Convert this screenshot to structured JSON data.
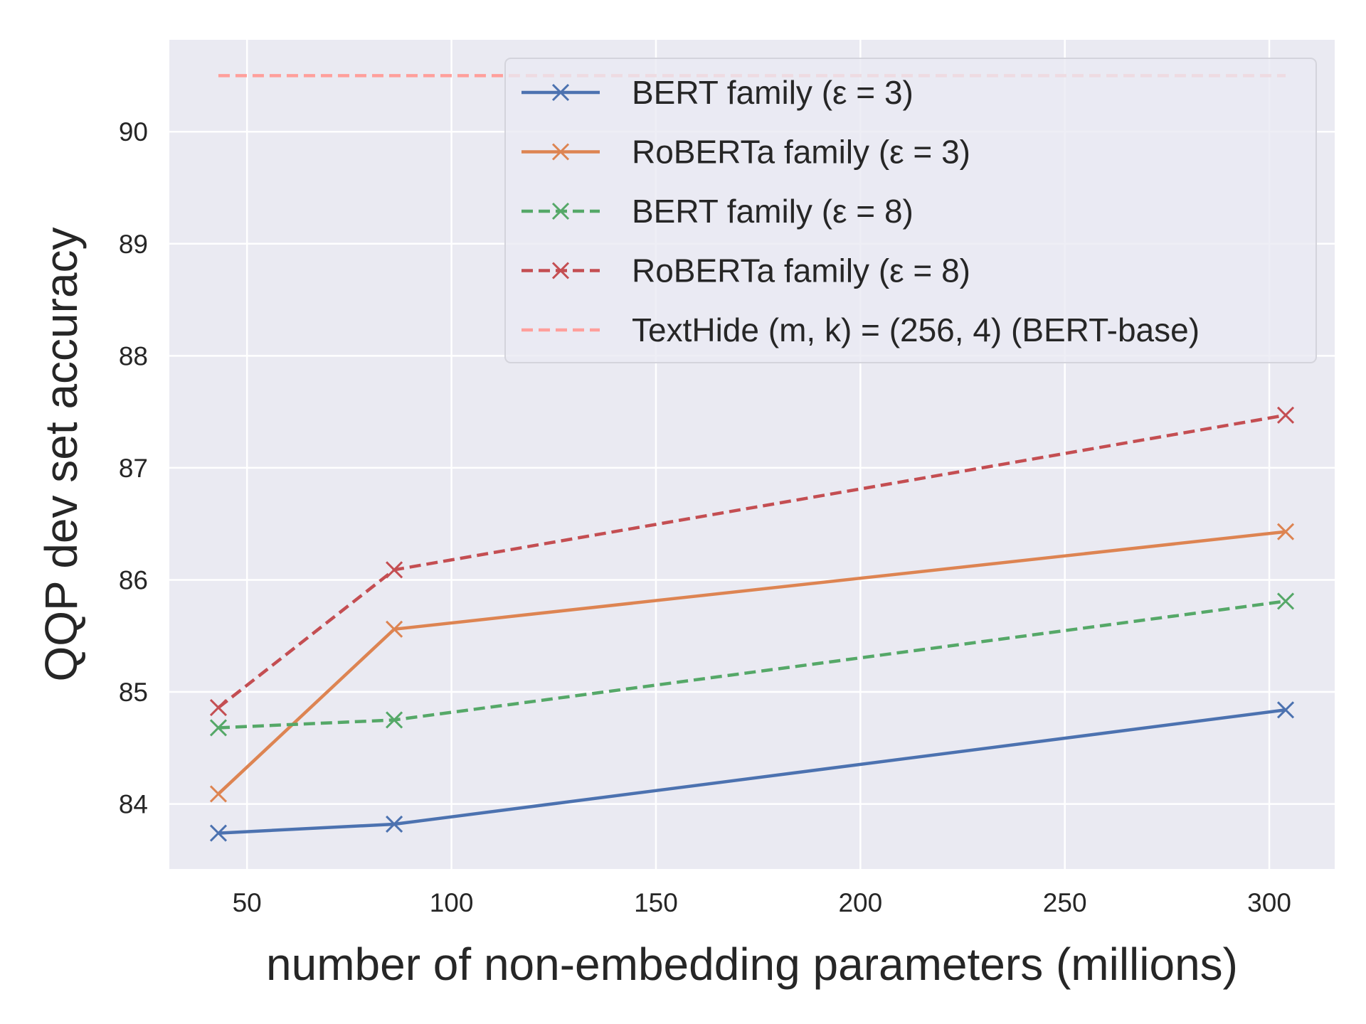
{
  "chart_data": {
    "type": "line",
    "xlabel": "number of non-embedding parameters (millions)",
    "ylabel": "QQP dev set accuracy",
    "xlim": [
      31,
      316
    ],
    "ylim": [
      83.42,
      90.82
    ],
    "xticks": [
      50,
      100,
      150,
      200,
      250,
      300
    ],
    "yticks": [
      84,
      85,
      86,
      87,
      88,
      89,
      90
    ],
    "grid": true,
    "legend_position": "top-right",
    "series": [
      {
        "name": "BERT family (ε = 3)",
        "color": "#4c72b0",
        "dashed": false,
        "marker": "x",
        "x": [
          43,
          86,
          304
        ],
        "y": [
          83.74,
          83.82,
          84.84
        ]
      },
      {
        "name": "RoBERTa family (ε = 3)",
        "color": "#dd8452",
        "dashed": false,
        "marker": "x",
        "x": [
          43,
          86,
          304
        ],
        "y": [
          84.09,
          85.56,
          86.43
        ]
      },
      {
        "name": "BERT family (ε = 8)",
        "color": "#55a868",
        "dashed": true,
        "marker": "x",
        "x": [
          43,
          86,
          304
        ],
        "y": [
          84.68,
          84.75,
          85.81
        ]
      },
      {
        "name": "RoBERTa family (ε = 8)",
        "color": "#c44e52",
        "dashed": true,
        "marker": "x",
        "x": [
          43,
          86,
          304
        ],
        "y": [
          84.86,
          86.09,
          87.47
        ]
      },
      {
        "name": "TextHide (m, k) = (256, 4) (BERT-base)",
        "color": "#ff9f9b",
        "dashed": true,
        "marker": "none",
        "x": [
          43,
          304
        ],
        "y": [
          90.5,
          90.5
        ]
      }
    ]
  }
}
